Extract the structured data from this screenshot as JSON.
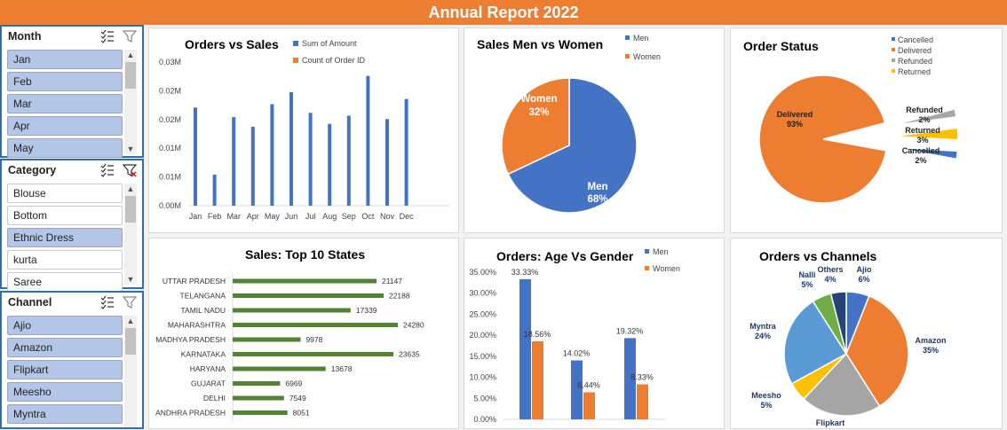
{
  "header": {
    "title": "Annual Report 2022"
  },
  "colors": {
    "orange": "#ed7d31",
    "blue": "#4472c4",
    "gray": "#a5a5a5",
    "yellow": "#ffc000",
    "lightblue": "#5b9bd5",
    "green": "#70ad47",
    "navy": "#264478",
    "barGreen": "#548235"
  },
  "slicers": {
    "month": {
      "title": "Month",
      "items": [
        "Jan",
        "Feb",
        "Mar",
        "Apr",
        "May"
      ]
    },
    "category": {
      "title": "Category",
      "items": [
        "Blouse",
        "Bottom",
        "Ethnic Dress",
        "kurta",
        "Saree"
      ]
    },
    "channel": {
      "title": "Channel",
      "items": [
        "Ajio",
        "Amazon",
        "Flipkart",
        "Meesho",
        "Myntra"
      ]
    }
  },
  "chart_data": [
    {
      "id": "orders_vs_sales",
      "type": "bar",
      "title": "Orders vs Sales",
      "categories": [
        "Jan",
        "Feb",
        "Mar",
        "Apr",
        "May",
        "Jun",
        "Jul",
        "Aug",
        "Sep",
        "Oct",
        "Nov",
        "Dec"
      ],
      "series": [
        {
          "name": "Sum of Amount",
          "values": [
            0.0205,
            0.0065,
            0.0185,
            0.0165,
            0.0212,
            0.0237,
            0.0194,
            0.0171,
            0.0188,
            0.0271,
            0.0181,
            0.0223
          ]
        },
        {
          "name": "Count of Order ID",
          "values": [
            0,
            0,
            0,
            0,
            0,
            0,
            0,
            0,
            0,
            0,
            0,
            0
          ]
        }
      ],
      "yticks": [
        "0.00M",
        "0.01M",
        "0.01M",
        "0.02M",
        "0.02M",
        "0.03M"
      ],
      "ylim": [
        0,
        0.03
      ],
      "legend": "top-right"
    },
    {
      "id": "sales_men_women",
      "type": "pie",
      "title": "Sales Men vs Women",
      "labels": [
        "Men",
        "Women"
      ],
      "values": [
        68,
        32
      ],
      "data_labels": [
        "68%",
        "32%"
      ],
      "legend": "right"
    },
    {
      "id": "order_status",
      "type": "pie",
      "title": "Order Status",
      "labels": [
        "Cancelled",
        "Delivered",
        "Refunded",
        "Returned"
      ],
      "values": [
        2,
        93,
        2,
        3
      ],
      "data_labels": [
        "2%",
        "93%",
        "2%",
        "3%"
      ],
      "legend": "top-right"
    },
    {
      "id": "top10_states",
      "type": "bar",
      "orientation": "horizontal",
      "title": "Sales: Top 10 States",
      "categories": [
        "UTTAR PRADESH",
        "TELANGANA",
        "TAMIL NADU",
        "MAHARASHTRA",
        "MADHYA PRADESH",
        "KARNATAKA",
        "HARYANA",
        "GUJARAT",
        "DELHI",
        "ANDHRA PRADESH"
      ],
      "values": [
        21147,
        22188,
        17339,
        24280,
        9978,
        23635,
        13678,
        6969,
        7549,
        8051
      ],
      "xlim": [
        0,
        26000
      ]
    },
    {
      "id": "age_vs_gender",
      "type": "bar",
      "title": "Orders: Age Vs Gender",
      "categories": [
        "",
        "",
        ""
      ],
      "series": [
        {
          "name": "Men",
          "values": [
            33.33,
            14.02,
            19.32
          ],
          "labels": [
            "33.33%",
            "14.02%",
            "19.32%"
          ]
        },
        {
          "name": "Women",
          "values": [
            18.56,
            6.44,
            8.33
          ],
          "labels": [
            "18.56%",
            "6.44%",
            "8.33%"
          ]
        }
      ],
      "yticks": [
        "0.00%",
        "5.00%",
        "10.00%",
        "15.00%",
        "20.00%",
        "25.00%",
        "30.00%",
        "35.00%"
      ],
      "ylim": [
        0,
        35
      ],
      "legend": "top-right"
    },
    {
      "id": "orders_vs_channels",
      "type": "pie",
      "title": "Orders vs Channels",
      "labels": [
        "Ajio",
        "Amazon",
        "Flipkart",
        "Meesho",
        "Myntra",
        "Nalli",
        "Others"
      ],
      "values": [
        6,
        35,
        21,
        5,
        24,
        5,
        4
      ],
      "data_labels": [
        "6%",
        "35%",
        "",
        "5%",
        "24%",
        "5%",
        "4%"
      ]
    }
  ]
}
